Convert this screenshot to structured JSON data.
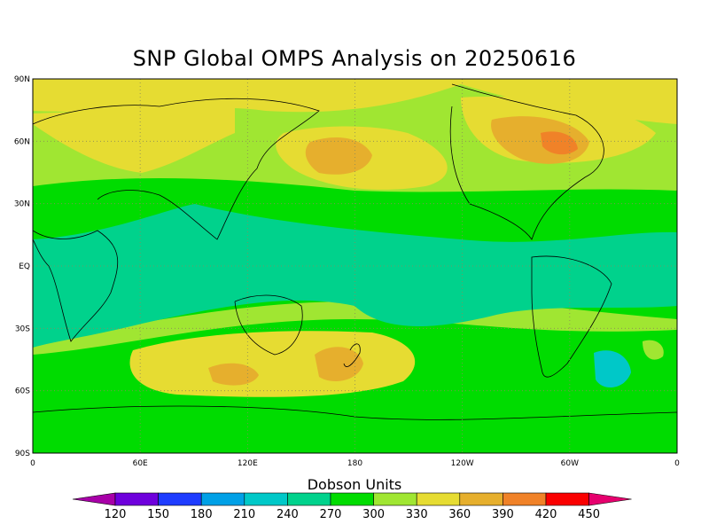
{
  "map": {
    "title": "SNP Global OMPS Analysis on 20250616",
    "lat_labels": [
      "90N",
      "60N",
      "30N",
      "EQ",
      "30S",
      "60S",
      "90S"
    ],
    "lon_labels": [
      "0",
      "60E",
      "120E",
      "180",
      "120W",
      "60W",
      "0"
    ]
  },
  "colorbar": {
    "label": "Dobson Units",
    "ticks": [
      "120",
      "150",
      "180",
      "210",
      "240",
      "270",
      "300",
      "330",
      "360",
      "390",
      "420",
      "450"
    ],
    "colors": [
      "#a800a8",
      "#6e00dc",
      "#1e3cff",
      "#00a0e6",
      "#00c8c8",
      "#00d28c",
      "#00dc00",
      "#a0e632",
      "#e6dc32",
      "#e6af2d",
      "#f08228",
      "#fa0000",
      "#e6006e"
    ]
  }
}
